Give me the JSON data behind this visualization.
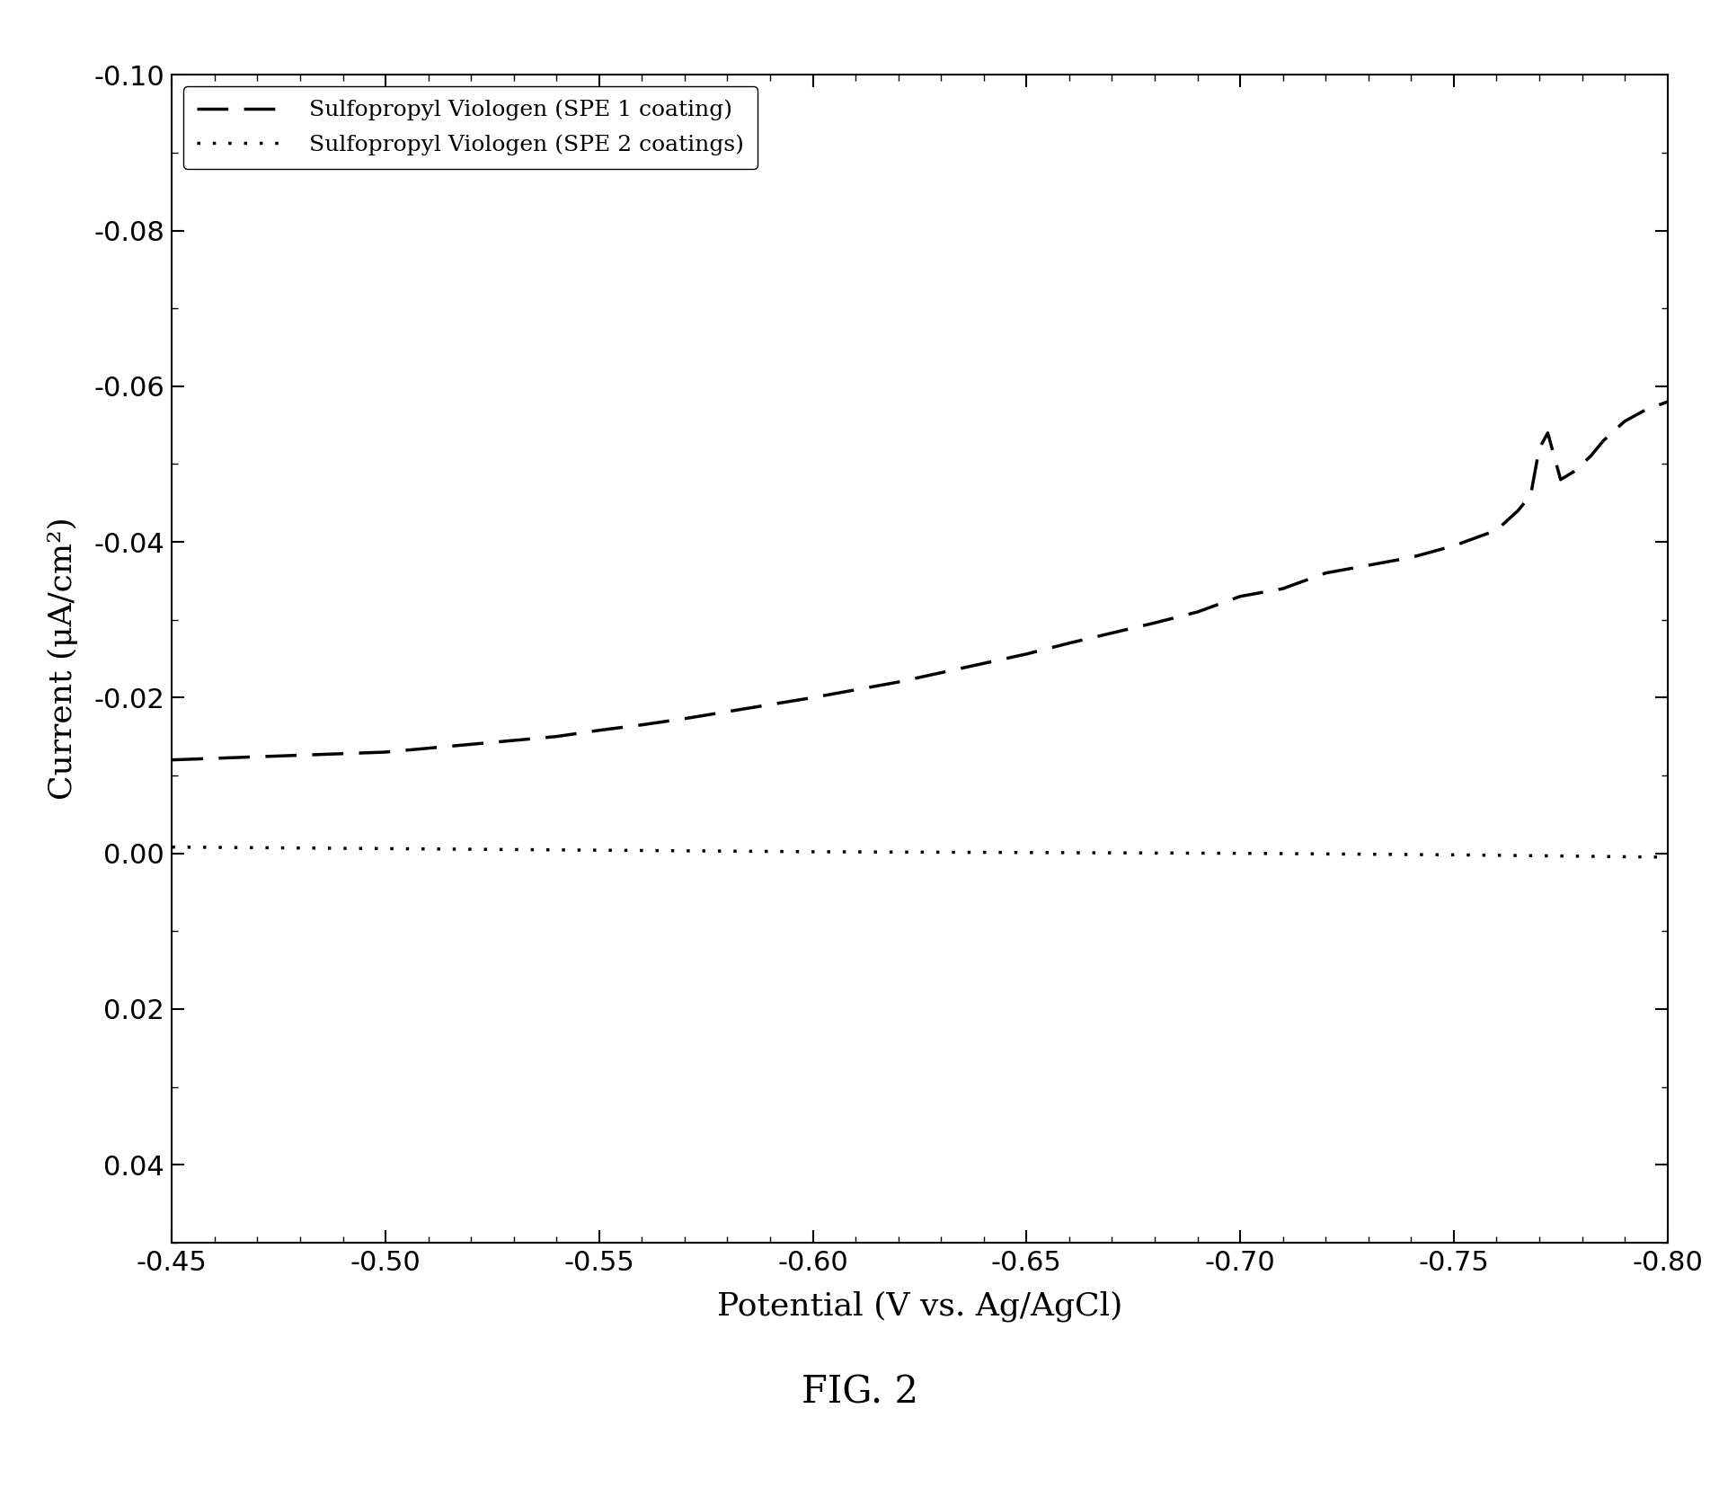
{
  "title": "FIG. 2",
  "xlabel": "Potential (V vs. Ag/AgCl)",
  "ylabel": "Current (μA/cm²)",
  "xlim": [
    -0.45,
    -0.8
  ],
  "ylim": [
    0.05,
    -0.1
  ],
  "yticks": [
    0.04,
    0.02,
    0.0,
    -0.02,
    -0.04,
    -0.06,
    -0.08,
    -0.1
  ],
  "xticks": [
    -0.45,
    -0.5,
    -0.55,
    -0.6,
    -0.65,
    -0.7,
    -0.75,
    -0.8
  ],
  "legend1_label": "Sulfopropyl Viologen (SPE 1 coating)",
  "legend2_label": "Sulfopropyl Viologen (SPE 2 coatings)",
  "background_color": "#ffffff",
  "line1_color": "#000000",
  "line2_color": "#000000",
  "curve1_x": [
    -0.45,
    -0.46,
    -0.47,
    -0.48,
    -0.49,
    -0.5,
    -0.51,
    -0.52,
    -0.53,
    -0.54,
    -0.55,
    -0.56,
    -0.57,
    -0.58,
    -0.59,
    -0.6,
    -0.61,
    -0.62,
    -0.63,
    -0.64,
    -0.65,
    -0.66,
    -0.67,
    -0.68,
    -0.69,
    -0.7,
    -0.71,
    -0.72,
    -0.73,
    -0.74,
    -0.75,
    -0.755,
    -0.76,
    -0.762,
    -0.765,
    -0.768,
    -0.77,
    -0.772,
    -0.775,
    -0.778,
    -0.78,
    -0.782,
    -0.785,
    -0.79,
    -0.795,
    -0.8
  ],
  "curve1_y": [
    -0.012,
    -0.0122,
    -0.0124,
    -0.0126,
    -0.0128,
    -0.013,
    -0.0135,
    -0.014,
    -0.0145,
    -0.015,
    -0.0158,
    -0.0165,
    -0.0173,
    -0.0182,
    -0.0191,
    -0.02,
    -0.021,
    -0.022,
    -0.0232,
    -0.0244,
    -0.0256,
    -0.027,
    -0.0283,
    -0.0296,
    -0.031,
    -0.033,
    -0.034,
    -0.036,
    -0.037,
    -0.038,
    -0.0395,
    -0.0405,
    -0.0415,
    -0.0425,
    -0.044,
    -0.046,
    -0.052,
    -0.054,
    -0.048,
    -0.049,
    -0.05,
    -0.051,
    -0.053,
    -0.0555,
    -0.057,
    -0.058
  ],
  "curve2_x": [
    -0.45,
    -0.5,
    -0.55,
    -0.6,
    -0.65,
    -0.7,
    -0.75,
    -0.8
  ],
  "curve2_y": [
    -0.0008,
    -0.0006,
    -0.0004,
    -0.0002,
    -0.0001,
    0.0,
    0.0002,
    0.0005
  ]
}
